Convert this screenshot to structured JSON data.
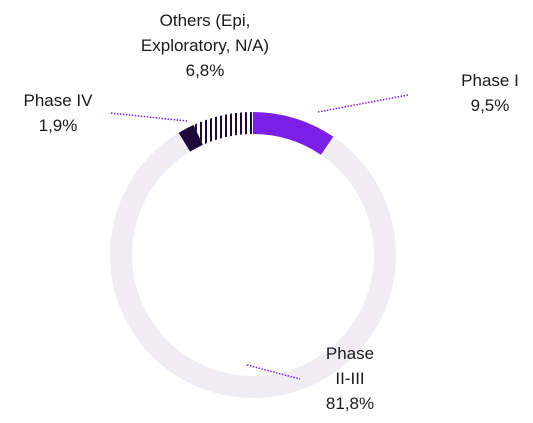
{
  "chart_data": {
    "type": "donut",
    "categories": [
      "Phase I",
      "Phase II-III",
      "Phase IV",
      "Others (Epi, Exploratory, N/A)"
    ],
    "values": [
      9.5,
      81.8,
      1.9,
      6.8
    ],
    "value_labels": [
      "9,5%",
      "81,8%",
      "1,9%",
      "6,8%"
    ],
    "colors": [
      "#7b1fe6",
      "#efedf3",
      "#1d0a3a",
      "striped"
    ]
  }
}
